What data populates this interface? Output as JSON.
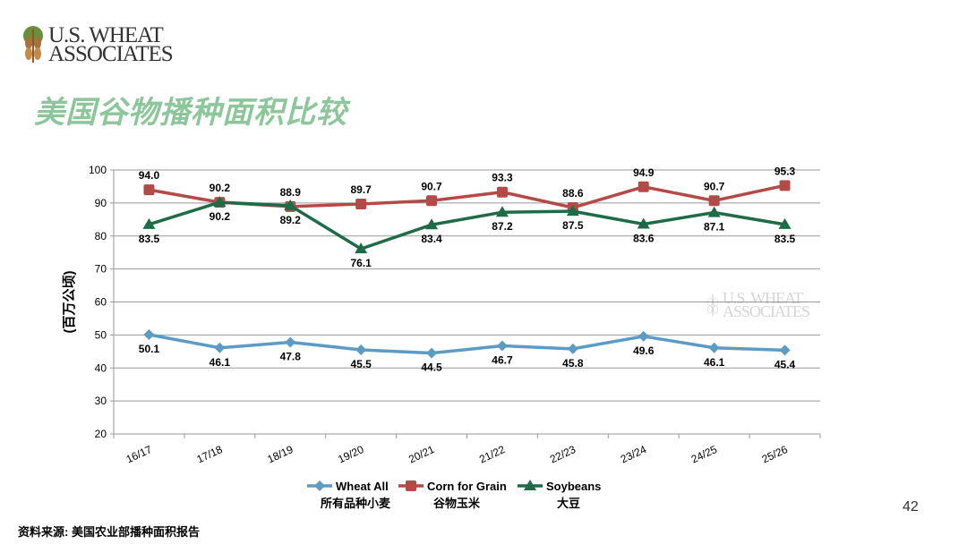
{
  "logo": {
    "line1": "U.S. WHEAT",
    "line2": "ASSOCIATES"
  },
  "title": "美国谷物播种面积比较",
  "page_number": "42",
  "source": "资料来源: 美国农业部播种面积报告",
  "chart_data": {
    "type": "line",
    "ylabel": "(百万公顷)",
    "ylim": [
      20,
      100
    ],
    "yticks": [
      20,
      30,
      40,
      50,
      60,
      70,
      80,
      90,
      100
    ],
    "grid": true,
    "legend_position": "bottom",
    "categories": [
      "16/17",
      "17/18",
      "18/19",
      "19/20",
      "20/21",
      "21/22",
      "22/23",
      "23/24",
      "24/25",
      "25/26"
    ],
    "series": [
      {
        "name": "Wheat All",
        "name_cn": "所有品种小麦",
        "color": "#5b9bc4",
        "marker": "diamond",
        "values": [
          50.1,
          46.1,
          47.8,
          45.5,
          44.5,
          46.7,
          45.8,
          49.6,
          46.1,
          45.4
        ],
        "label_position": "below"
      },
      {
        "name": "Corn for Grain",
        "name_cn": "谷物玉米",
        "color": "#b34a47",
        "marker": "square",
        "values": [
          94.0,
          90.2,
          88.9,
          89.7,
          90.7,
          93.3,
          88.6,
          94.9,
          90.7,
          95.3
        ],
        "label_position": "above"
      },
      {
        "name": "Soybeans",
        "name_cn": "大豆",
        "color": "#1f6b48",
        "marker": "triangle",
        "values": [
          83.5,
          90.2,
          89.2,
          76.1,
          83.4,
          87.2,
          87.5,
          83.6,
          87.1,
          83.5
        ],
        "label_position": "below"
      }
    ]
  }
}
